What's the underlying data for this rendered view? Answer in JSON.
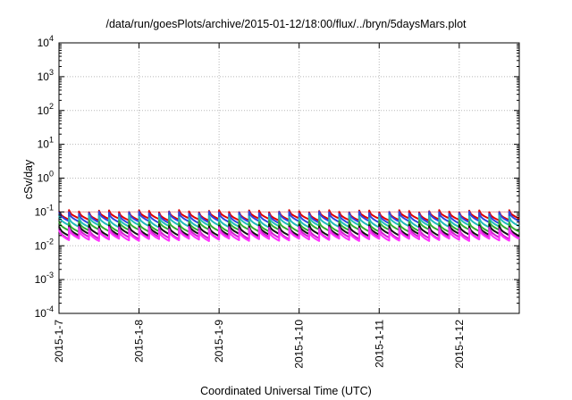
{
  "chart_data": {
    "type": "line",
    "title": "/data/run/goesPlots/archive/2015-01-12/18:00/flux/../bryn/5daysMars.plot",
    "xlabel": "Coordinated Universal Time (UTC)",
    "ylabel": "cSv/day",
    "yscale": "log",
    "ylim": [
      0.0001,
      10000
    ],
    "y_ticks": [
      {
        "exp": -4,
        "label_base": "10",
        "label_exp": "-4"
      },
      {
        "exp": -3,
        "label_base": "10",
        "label_exp": "-3"
      },
      {
        "exp": -2,
        "label_base": "10",
        "label_exp": "-2"
      },
      {
        "exp": -1,
        "label_base": "10",
        "label_exp": "-1"
      },
      {
        "exp": 0,
        "label_base": "10",
        "label_exp": "0"
      },
      {
        "exp": 1,
        "label_base": "10",
        "label_exp": "1"
      },
      {
        "exp": 2,
        "label_base": "10",
        "label_exp": "2"
      },
      {
        "exp": 3,
        "label_base": "10",
        "label_exp": "3"
      },
      {
        "exp": 4,
        "label_base": "10",
        "label_exp": "4"
      }
    ],
    "xlim": [
      "2015-01-07T00:00",
      "2015-01-12T18:00"
    ],
    "x_ticks": [
      "2015-1-7",
      "2015-1-8",
      "2015-1-9",
      "2015-1-10",
      "2015-1-11",
      "2015-1-12"
    ],
    "grid": true,
    "reference_line": {
      "y": 0.1,
      "color": "#e8a0a0"
    },
    "series": [
      {
        "color": "#e00000",
        "values": [
          0.105,
          0.06
        ]
      },
      {
        "color": "#3344dd",
        "values": [
          0.095,
          0.05
        ]
      },
      {
        "color": "#22bbbb",
        "values": [
          0.072,
          0.038
        ]
      },
      {
        "color": "#33aa33",
        "values": [
          0.052,
          0.028
        ]
      },
      {
        "color": "#111111",
        "values": [
          0.04,
          0.021
        ]
      },
      {
        "color": "#cc22cc",
        "values": [
          0.034,
          0.017
        ]
      },
      {
        "color": "#ff33ff",
        "values": [
          0.03,
          0.015
        ]
      }
    ],
    "cycle_hours": 3
  }
}
